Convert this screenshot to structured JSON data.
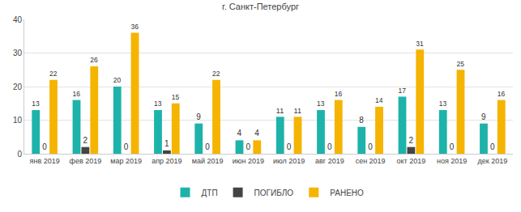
{
  "chart_data": {
    "type": "bar",
    "title": "г. Санкт-Петербург",
    "categories": [
      "янв 2019",
      "фев 2019",
      "мар 2019",
      "апр 2019",
      "май 2019",
      "июн 2019",
      "июл 2019",
      "авг 2019",
      "сен 2019",
      "окт 2019",
      "ноя 2019",
      "дек 2019"
    ],
    "series": [
      {
        "name": "ДТП",
        "color": "#1db3aa",
        "values": [
          13,
          16,
          20,
          13,
          9,
          4,
          11,
          13,
          8,
          17,
          13,
          9
        ]
      },
      {
        "name": "ПОГИБЛО",
        "color": "#444444",
        "values": [
          0,
          2,
          0,
          1,
          0,
          0,
          0,
          0,
          0,
          2,
          0,
          0
        ]
      },
      {
        "name": "РАНЕНО",
        "color": "#f5b400",
        "values": [
          22,
          26,
          36,
          15,
          22,
          4,
          11,
          16,
          14,
          31,
          25,
          16
        ]
      }
    ],
    "ylim": [
      0,
      40
    ],
    "yticks": [
      0,
      10,
      20,
      30,
      40
    ],
    "grid": true,
    "legend": "bottom",
    "data_labels": true
  }
}
